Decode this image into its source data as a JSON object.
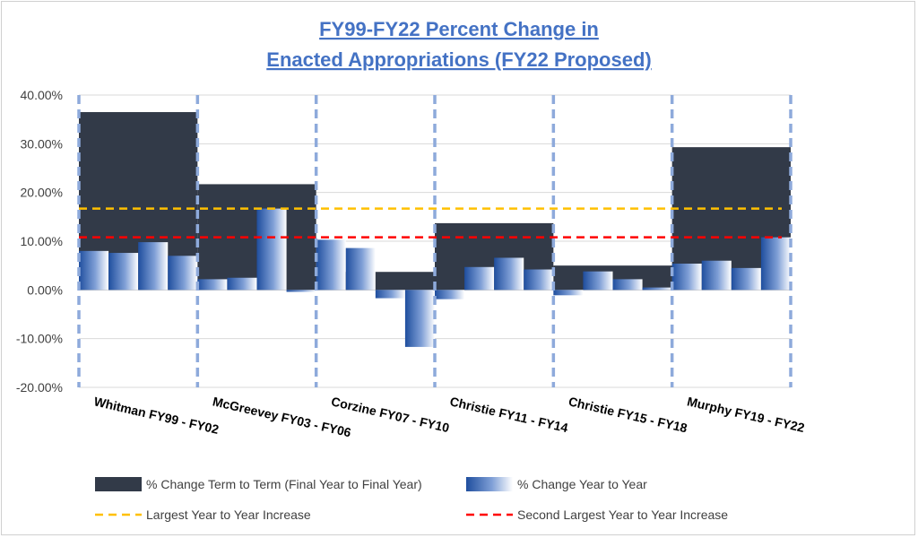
{
  "chart_data": {
    "type": "bar",
    "title_line1": "FY99-FY22 Percent Change in",
    "title_line2": "Enacted Appropriations (FY22 Proposed)",
    "ylim": [
      -0.2,
      0.4
    ],
    "ytick_values": [
      0.4,
      0.3,
      0.2,
      0.1,
      0.0,
      -0.1,
      -0.2
    ],
    "ytick_labels": [
      "40.00%",
      "30.00%",
      "20.00%",
      "10.00%",
      "0.00%",
      "-10.00%",
      "-20.00%"
    ],
    "categories": [
      "Whitman FY99 - FY02",
      "McGreevey FY03 - FY06",
      "Corzine FY07 - FY10",
      "Christie FY11 - FY14",
      "Christie FY15 - FY18",
      "Murphy FY19 - FY22"
    ],
    "term_to_term": {
      "name": "% Change Term to Term (Final Year to Final Year)",
      "color": "#323a48",
      "values": [
        0.365,
        0.217,
        0.037,
        0.137,
        0.05,
        0.293
      ]
    },
    "year_to_year": {
      "name": "% Change Year to Year",
      "color": "#2f5fb3",
      "values": [
        [
          0.08,
          0.076,
          0.098,
          0.07
        ],
        [
          0.022,
          0.025,
          0.167,
          -0.004
        ],
        [
          0.103,
          0.086,
          -0.017,
          -0.117
        ],
        [
          -0.019,
          0.047,
          0.066,
          0.042
        ],
        [
          -0.011,
          0.038,
          0.022,
          0.005
        ],
        [
          0.054,
          0.06,
          0.045,
          0.108
        ]
      ]
    },
    "largest_increase": {
      "name": "Largest Year to Year Increase",
      "value": 0.167,
      "color": "#ffc000"
    },
    "second_largest_increase": {
      "name": "Second Largest Year to Year Increase",
      "value": 0.108,
      "color": "#ff0000"
    },
    "grid": true,
    "legend_position": "bottom"
  }
}
